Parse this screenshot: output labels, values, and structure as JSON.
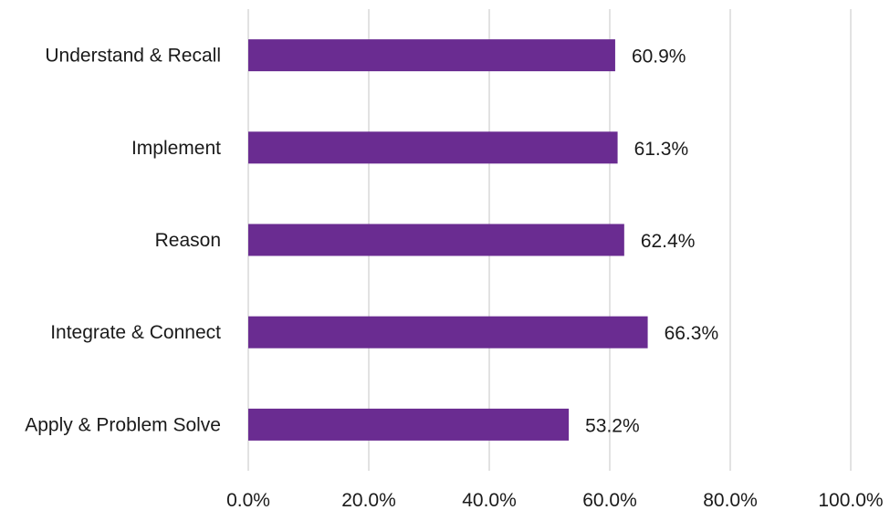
{
  "chart_data": {
    "type": "bar",
    "orientation": "horizontal",
    "categories": [
      "Understand & Recall",
      "Implement",
      "Reason",
      "Integrate & Connect",
      "Apply & Problem Solve"
    ],
    "values": [
      60.9,
      61.3,
      62.4,
      66.3,
      53.2
    ],
    "value_labels": [
      "60.9%",
      "61.3%",
      "62.4%",
      "66.3%",
      "53.2%"
    ],
    "x_ticks": [
      "0.0%",
      "20.0%",
      "40.0%",
      "60.0%",
      "80.0%",
      "100.0%"
    ],
    "xlim": [
      0,
      100
    ],
    "grid": true,
    "legend": "none",
    "bar_color": "#6a2c91",
    "grid_color": "#d9d9d9",
    "text_color": "#1a1a1a"
  }
}
